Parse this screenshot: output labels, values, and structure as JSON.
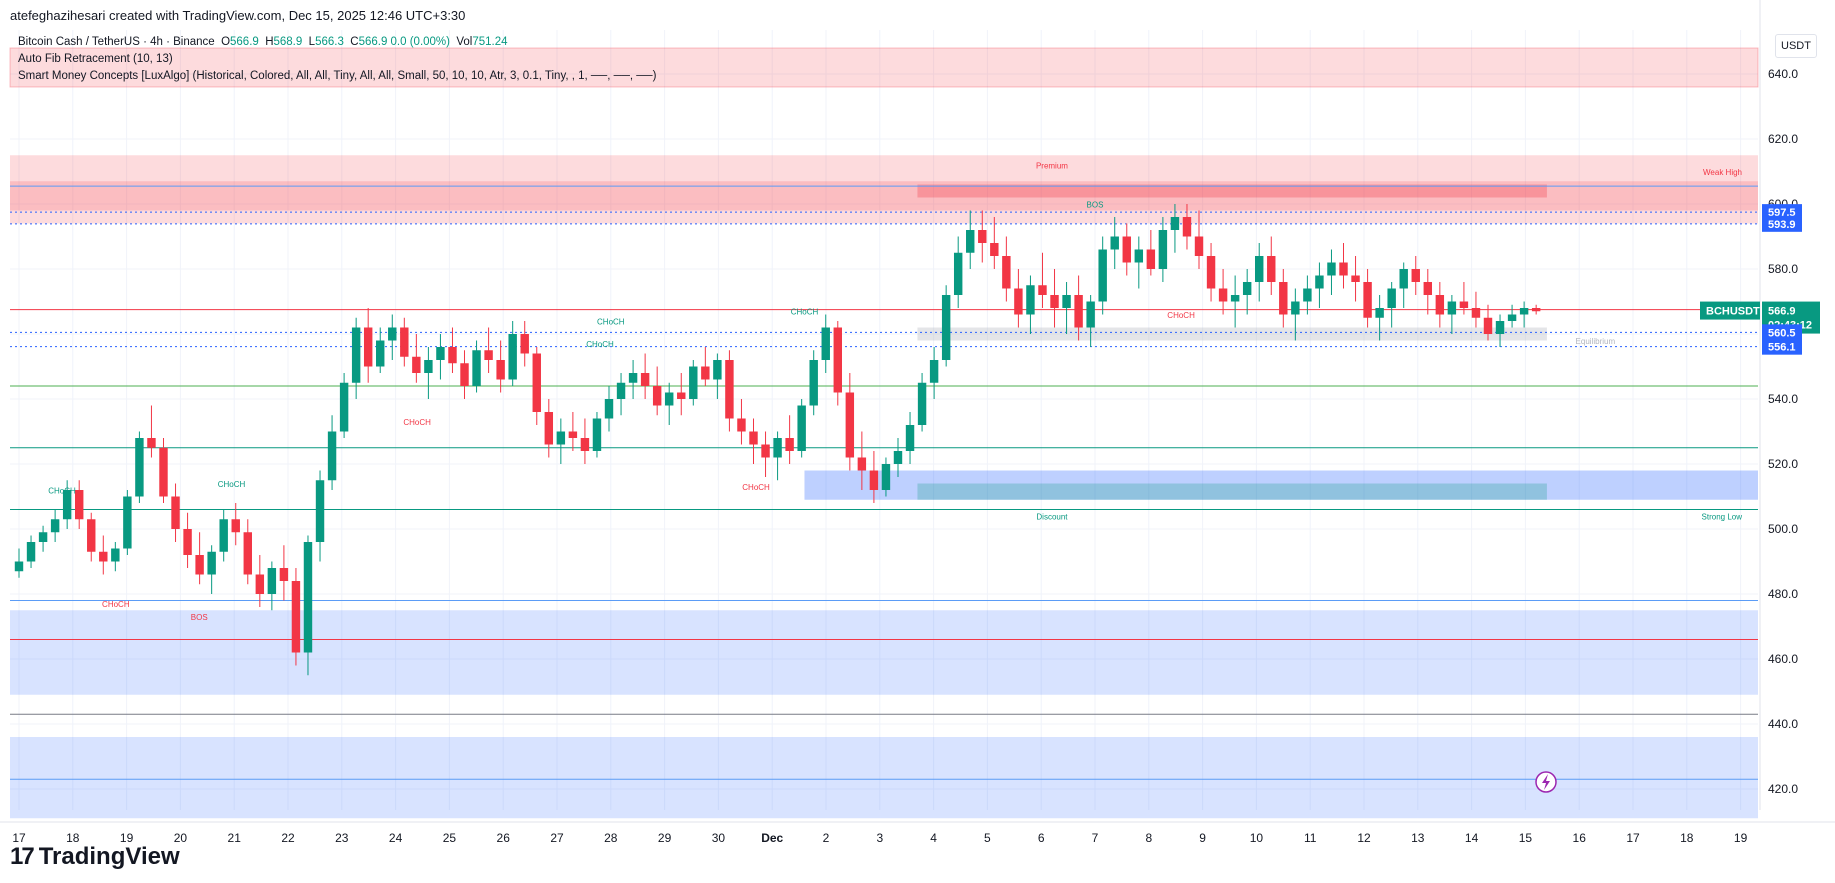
{
  "header": {
    "text": "atefeghazihesari created with TradingView.com, Dec 15, 2025 12:46 UTC+3:30"
  },
  "legend": {
    "symbol": "Bitcoin Cash / TetherUS · 4h · Binance",
    "o_label": "O",
    "o_val": "566.9",
    "h_label": "H",
    "h_val": "568.9",
    "l_label": "L",
    "l_val": "566.3",
    "c_label": "C",
    "c_val": "566.9 0.0 (0.00%)",
    "vol_label": "Vol",
    "vol_val": "751.24",
    "indicator1": "Auto Fib Retracement (10, 13)",
    "indicator2": "Smart Money Concepts [LuxAlgo] (Historical, Colored, All, All, Tiny, All, All, Small, 50, 10, 10, Atr, 3, 0.1, Tiny, , 1, ──, ──, ──)"
  },
  "currency": "USDT",
  "brand": {
    "logo": "17",
    "name": "TradingView"
  },
  "colors": {
    "up": "#089981",
    "down": "#f23645",
    "premium": "#f23645",
    "discount": "#2962ff",
    "equilibrium": "#b2b5be"
  },
  "chart_data": {
    "type": "candlestick",
    "symbol": "BCHUSDT",
    "timeframe": "4h",
    "ylim": [
      408,
      648
    ],
    "y_ticks": [
      420,
      440,
      460,
      480,
      500,
      520,
      540,
      560,
      580,
      600,
      620,
      640
    ],
    "y_tick_labels": [
      "420.0",
      "440.0",
      "460.0",
      "480.0",
      "500.0",
      "520.0",
      "540.0",
      "560.0",
      "580.0",
      "600.0",
      "620.0",
      "640.0"
    ],
    "x_labels": [
      "17",
      "18",
      "19",
      "20",
      "21",
      "22",
      "23",
      "24",
      "25",
      "26",
      "27",
      "28",
      "29",
      "30",
      "Dec",
      "2",
      "3",
      "4",
      "5",
      "6",
      "7",
      "8",
      "9",
      "10",
      "11",
      "12",
      "13",
      "14",
      "15",
      "16",
      "17",
      "18",
      "19"
    ],
    "price_boxes": [
      {
        "label": "597.5",
        "value": 597.5,
        "color": "#2962ff"
      },
      {
        "label": "593.9",
        "value": 593.9,
        "color": "#2962ff"
      },
      {
        "label": "BCHUSDT",
        "value": 566.9,
        "color": "#089981",
        "extra_label": "566.9",
        "extra_sub": "02:43:12"
      },
      {
        "label": "560.5",
        "value": 560.5,
        "color": "#2962ff"
      },
      {
        "label": "556.1",
        "value": 556.1,
        "color": "#2962ff"
      }
    ],
    "zone_labels": {
      "premium": "Premium",
      "discount": "Discount",
      "equilibrium": "Equilibrium",
      "weak_high": "Weak High",
      "strong_low": "Strong Low"
    },
    "structure_labels": [
      {
        "text": "CHoCH",
        "x_day": 0.8,
        "y": 511,
        "kind": "bull"
      },
      {
        "text": "CHoCH",
        "x_day": 3.95,
        "y": 513,
        "kind": "bull"
      },
      {
        "text": "CHoCH",
        "x_day": 1.8,
        "y": 476,
        "kind": "bear"
      },
      {
        "text": "BOS",
        "x_day": 3.35,
        "y": 472,
        "kind": "bear"
      },
      {
        "text": "CHoCH",
        "x_day": 11.0,
        "y": 563,
        "kind": "bull"
      },
      {
        "text": "CHoCH",
        "x_day": 7.4,
        "y": 532,
        "kind": "bear"
      },
      {
        "text": "CHoCH",
        "x_day": 10.8,
        "y": 556,
        "kind": "bull"
      },
      {
        "text": "CHoCH",
        "x_day": 13.7,
        "y": 512,
        "kind": "bear"
      },
      {
        "text": "CHoCH",
        "x_day": 14.6,
        "y": 566,
        "kind": "bull"
      },
      {
        "text": "BOS",
        "x_day": 20.0,
        "y": 599,
        "kind": "bull"
      },
      {
        "text": "CHoCH",
        "x_day": 21.6,
        "y": 565,
        "kind": "bear"
      }
    ],
    "ohlc": [
      [
        487,
        494,
        485,
        490
      ],
      [
        490,
        498,
        488,
        496
      ],
      [
        496,
        501,
        493,
        499
      ],
      [
        499,
        506,
        496,
        503
      ],
      [
        503,
        515,
        500,
        512
      ],
      [
        512,
        515,
        500,
        503
      ],
      [
        503,
        505,
        490,
        493
      ],
      [
        493,
        498,
        486,
        490
      ],
      [
        490,
        496,
        487,
        494
      ],
      [
        494,
        512,
        492,
        510
      ],
      [
        510,
        530,
        508,
        528
      ],
      [
        528,
        538,
        522,
        525
      ],
      [
        525,
        528,
        508,
        510
      ],
      [
        510,
        514,
        496,
        500
      ],
      [
        500,
        505,
        488,
        492
      ],
      [
        492,
        499,
        483,
        486
      ],
      [
        486,
        495,
        480,
        493
      ],
      [
        493,
        506,
        490,
        503
      ],
      [
        503,
        508,
        495,
        499
      ],
      [
        499,
        503,
        483,
        486
      ],
      [
        486,
        492,
        476,
        480
      ],
      [
        480,
        490,
        475,
        488
      ],
      [
        488,
        495,
        478,
        484
      ],
      [
        484,
        488,
        458,
        462
      ],
      [
        462,
        498,
        455,
        496
      ],
      [
        496,
        518,
        490,
        515
      ],
      [
        515,
        535,
        512,
        530
      ],
      [
        530,
        548,
        528,
        545
      ],
      [
        545,
        565,
        540,
        562
      ],
      [
        562,
        568,
        545,
        550
      ],
      [
        550,
        562,
        548,
        558
      ],
      [
        558,
        566,
        552,
        562
      ],
      [
        562,
        565,
        550,
        553
      ],
      [
        553,
        560,
        545,
        548
      ],
      [
        548,
        556,
        540,
        552
      ],
      [
        552,
        560,
        546,
        556
      ],
      [
        556,
        562,
        548,
        551
      ],
      [
        551,
        555,
        540,
        544
      ],
      [
        544,
        558,
        542,
        555
      ],
      [
        555,
        562,
        548,
        552
      ],
      [
        552,
        558,
        542,
        546
      ],
      [
        546,
        564,
        544,
        560
      ],
      [
        560,
        564,
        550,
        554
      ],
      [
        554,
        556,
        532,
        536
      ],
      [
        536,
        540,
        522,
        526
      ],
      [
        526,
        534,
        520,
        530
      ],
      [
        530,
        536,
        524,
        528
      ],
      [
        528,
        534,
        520,
        524
      ],
      [
        524,
        536,
        522,
        534
      ],
      [
        534,
        544,
        530,
        540
      ],
      [
        540,
        548,
        535,
        545
      ],
      [
        545,
        552,
        540,
        548
      ],
      [
        548,
        554,
        540,
        544
      ],
      [
        544,
        550,
        535,
        538
      ],
      [
        538,
        545,
        532,
        542
      ],
      [
        542,
        548,
        535,
        540
      ],
      [
        540,
        552,
        538,
        550
      ],
      [
        550,
        556,
        544,
        546
      ],
      [
        546,
        554,
        540,
        552
      ],
      [
        552,
        555,
        530,
        534
      ],
      [
        534,
        540,
        526,
        530
      ],
      [
        530,
        534,
        520,
        526
      ],
      [
        526,
        530,
        516,
        522
      ],
      [
        522,
        530,
        515,
        528
      ],
      [
        528,
        535,
        520,
        524
      ],
      [
        524,
        540,
        522,
        538
      ],
      [
        538,
        555,
        535,
        552
      ],
      [
        552,
        566,
        548,
        562
      ],
      [
        562,
        564,
        538,
        542
      ],
      [
        542,
        548,
        518,
        522
      ],
      [
        522,
        530,
        512,
        518
      ],
      [
        518,
        524,
        508,
        512
      ],
      [
        512,
        522,
        510,
        520
      ],
      [
        520,
        528,
        516,
        524
      ],
      [
        524,
        536,
        520,
        532
      ],
      [
        532,
        548,
        530,
        545
      ],
      [
        545,
        556,
        540,
        552
      ],
      [
        552,
        575,
        550,
        572
      ],
      [
        572,
        590,
        568,
        585
      ],
      [
        585,
        598,
        580,
        592
      ],
      [
        592,
        598,
        582,
        588
      ],
      [
        588,
        596,
        580,
        584
      ],
      [
        584,
        590,
        570,
        574
      ],
      [
        574,
        580,
        562,
        566
      ],
      [
        566,
        578,
        560,
        575
      ],
      [
        575,
        585,
        568,
        572
      ],
      [
        572,
        580,
        562,
        568
      ],
      [
        568,
        576,
        560,
        572
      ],
      [
        572,
        578,
        558,
        562
      ],
      [
        562,
        572,
        556,
        570
      ],
      [
        570,
        590,
        566,
        586
      ],
      [
        586,
        596,
        580,
        590
      ],
      [
        590,
        594,
        578,
        582
      ],
      [
        582,
        590,
        574,
        586
      ],
      [
        586,
        592,
        578,
        580
      ],
      [
        580,
        596,
        576,
        592
      ],
      [
        592,
        600,
        585,
        596
      ],
      [
        596,
        600,
        586,
        590
      ],
      [
        590,
        598,
        580,
        584
      ],
      [
        584,
        588,
        570,
        574
      ],
      [
        574,
        580,
        566,
        570
      ],
      [
        570,
        578,
        562,
        572
      ],
      [
        572,
        580,
        566,
        576
      ],
      [
        576,
        588,
        570,
        584
      ],
      [
        584,
        590,
        572,
        576
      ],
      [
        576,
        580,
        562,
        566
      ],
      [
        566,
        574,
        558,
        570
      ],
      [
        570,
        578,
        566,
        574
      ],
      [
        574,
        582,
        568,
        578
      ],
      [
        578,
        586,
        572,
        582
      ],
      [
        582,
        588,
        574,
        578
      ],
      [
        578,
        584,
        570,
        576
      ],
      [
        576,
        580,
        562,
        565
      ],
      [
        565,
        572,
        558,
        568
      ],
      [
        568,
        576,
        562,
        574
      ],
      [
        574,
        582,
        568,
        580
      ],
      [
        580,
        584,
        572,
        576
      ],
      [
        576,
        580,
        566,
        572
      ],
      [
        572,
        576,
        562,
        566
      ],
      [
        566,
        572,
        560,
        570
      ],
      [
        570,
        576,
        566,
        568
      ],
      [
        568,
        573,
        562,
        565
      ],
      [
        565,
        569,
        558,
        560
      ],
      [
        560,
        566,
        556,
        564
      ],
      [
        564,
        569,
        562,
        566
      ],
      [
        566,
        570,
        562,
        568
      ],
      [
        568,
        569,
        566,
        567
      ]
    ]
  }
}
